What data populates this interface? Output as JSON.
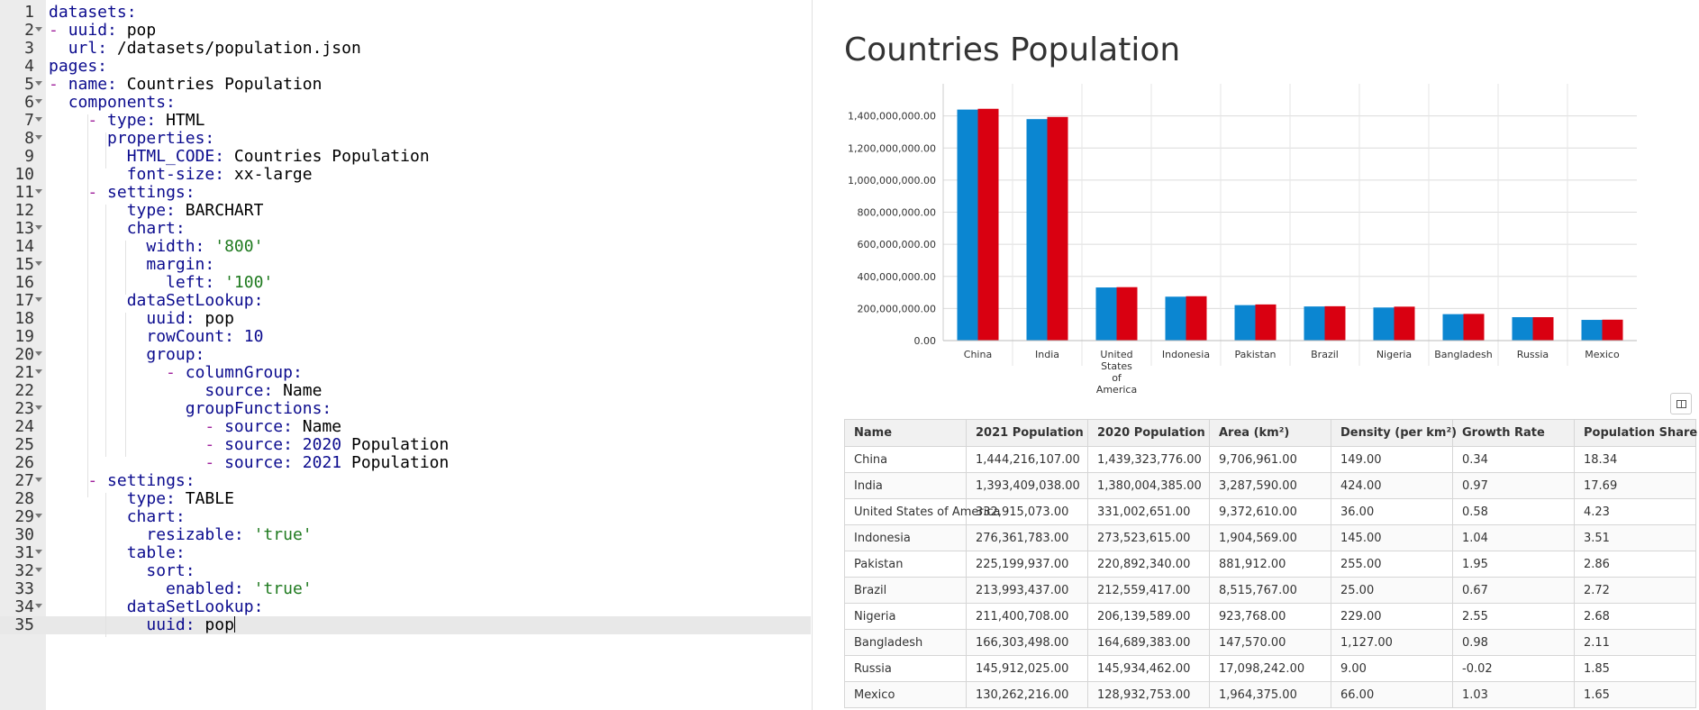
{
  "editor": {
    "lines": [
      {
        "n": "1",
        "fold": false,
        "html": "<span class=\"k\">datasets:</span>"
      },
      {
        "n": "2",
        "fold": true,
        "html": "<span class=\"dash\">-</span> <span class=\"k\">uuid:</span> pop"
      },
      {
        "n": "3",
        "fold": false,
        "html": "  <span class=\"k\">url:</span> /datasets/population.json"
      },
      {
        "n": "4",
        "fold": false,
        "html": "<span class=\"k\">pages:</span>"
      },
      {
        "n": "5",
        "fold": true,
        "html": "<span class=\"dash\">-</span> <span class=\"k\">name:</span> Countries Population"
      },
      {
        "n": "6",
        "fold": true,
        "html": "  <span class=\"k\">components:</span>"
      },
      {
        "n": "7",
        "fold": true,
        "html": "    <span class=\"dash\">-</span> <span class=\"k\">type:</span> HTML"
      },
      {
        "n": "8",
        "fold": true,
        "html": "      <span class=\"k\">properties:</span>"
      },
      {
        "n": "9",
        "fold": false,
        "html": "        <span class=\"k\">HTML_CODE:</span> Countries Population"
      },
      {
        "n": "10",
        "fold": false,
        "html": "        <span class=\"k\">font-size:</span> xx-large"
      },
      {
        "n": "11",
        "fold": true,
        "html": "    <span class=\"dash\">-</span> <span class=\"k\">settings:</span>"
      },
      {
        "n": "12",
        "fold": false,
        "html": "        <span class=\"k\">type:</span> BARCHART"
      },
      {
        "n": "13",
        "fold": true,
        "html": "        <span class=\"k\">chart:</span>"
      },
      {
        "n": "14",
        "fold": false,
        "html": "          <span class=\"k\">width:</span> <span class=\"s\">'800'</span>"
      },
      {
        "n": "15",
        "fold": true,
        "html": "          <span class=\"k\">margin:</span>"
      },
      {
        "n": "16",
        "fold": false,
        "html": "            <span class=\"k\">left:</span> <span class=\"s\">'100'</span>"
      },
      {
        "n": "17",
        "fold": true,
        "html": "        <span class=\"k\">dataSetLookup:</span>"
      },
      {
        "n": "18",
        "fold": false,
        "html": "          <span class=\"k\">uuid:</span> pop"
      },
      {
        "n": "19",
        "fold": false,
        "html": "          <span class=\"k\">rowCount:</span> <span class=\"n\">10</span>"
      },
      {
        "n": "20",
        "fold": true,
        "html": "          <span class=\"k\">group:</span>"
      },
      {
        "n": "21",
        "fold": true,
        "html": "            <span class=\"dash\">-</span> <span class=\"k\">columnGroup:</span>"
      },
      {
        "n": "22",
        "fold": false,
        "html": "                <span class=\"k\">source:</span> Name"
      },
      {
        "n": "23",
        "fold": true,
        "html": "              <span class=\"k\">groupFunctions:</span>"
      },
      {
        "n": "24",
        "fold": false,
        "html": "                <span class=\"dash\">-</span> <span class=\"k\">source:</span> Name"
      },
      {
        "n": "25",
        "fold": false,
        "html": "                <span class=\"dash\">-</span> <span class=\"k\">source:</span> <span class=\"n\">2020</span> Population"
      },
      {
        "n": "26",
        "fold": false,
        "html": "                <span class=\"dash\">-</span> <span class=\"k\">source:</span> <span class=\"n\">2021</span> Population"
      },
      {
        "n": "27",
        "fold": true,
        "html": "    <span class=\"dash\">-</span> <span class=\"k\">settings:</span>"
      },
      {
        "n": "28",
        "fold": false,
        "html": "        <span class=\"k\">type:</span> TABLE"
      },
      {
        "n": "29",
        "fold": true,
        "html": "        <span class=\"k\">chart:</span>"
      },
      {
        "n": "30",
        "fold": false,
        "html": "          <span class=\"k\">resizable:</span> <span class=\"s\">'true'</span>"
      },
      {
        "n": "31",
        "fold": true,
        "html": "        <span class=\"k\">table:</span>"
      },
      {
        "n": "32",
        "fold": true,
        "html": "          <span class=\"k\">sort:</span>"
      },
      {
        "n": "33",
        "fold": false,
        "html": "            <span class=\"k\">enabled:</span> <span class=\"s\">'true'</span>"
      },
      {
        "n": "34",
        "fold": true,
        "html": "        <span class=\"k\">dataSetLookup:</span>"
      },
      {
        "n": "35",
        "fold": false,
        "html": "          <span class=\"k\">uuid:</span> pop<span class=\"cursor\"></span>"
      }
    ]
  },
  "page": {
    "title": "Countries Population"
  },
  "chart_data": {
    "type": "bar",
    "title": "",
    "xlabel": "",
    "ylabel": "",
    "categories": [
      "China",
      "India",
      "United States of America",
      "Indonesia",
      "Pakistan",
      "Brazil",
      "Nigeria",
      "Bangladesh",
      "Russia",
      "Mexico"
    ],
    "series": [
      {
        "values": [
          1439323776,
          1380004385,
          331002651,
          273523615,
          220892340,
          212559417,
          206139589,
          164689383,
          145934462,
          128932753
        ],
        "color": "#0b86d1"
      },
      {
        "values": [
          1444216107,
          1393409038,
          332915073,
          276361783,
          225199937,
          213993437,
          211400708,
          166303498,
          145912025,
          130262216
        ],
        "color": "#d90011"
      }
    ],
    "ylim": [
      0,
      1600000000
    ],
    "yticks": [
      "0.00",
      "200,000,000.00",
      "400,000,000.00",
      "600,000,000.00",
      "800,000,000.00",
      "1,000,000,000.00",
      "1,200,000,000.00",
      "1,400,000,000.00"
    ],
    "grid": true,
    "legend": "none"
  },
  "table": {
    "headers": [
      "Name",
      "2021 Population",
      "2020 Population",
      "Area (km²)",
      "Density (per km²)",
      "Growth Rate",
      "Population Share"
    ],
    "rows": [
      [
        "China",
        "1,444,216,107.00",
        "1,439,323,776.00",
        "9,706,961.00",
        "149.00",
        "0.34",
        "18.34"
      ],
      [
        "India",
        "1,393,409,038.00",
        "1,380,004,385.00",
        "3,287,590.00",
        "424.00",
        "0.97",
        "17.69"
      ],
      [
        "United States of America",
        "332,915,073.00",
        "331,002,651.00",
        "9,372,610.00",
        "36.00",
        "0.58",
        "4.23"
      ],
      [
        "Indonesia",
        "276,361,783.00",
        "273,523,615.00",
        "1,904,569.00",
        "145.00",
        "1.04",
        "3.51"
      ],
      [
        "Pakistan",
        "225,199,937.00",
        "220,892,340.00",
        "881,912.00",
        "255.00",
        "1.95",
        "2.86"
      ],
      [
        "Brazil",
        "213,993,437.00",
        "212,559,417.00",
        "8,515,767.00",
        "25.00",
        "0.67",
        "2.72"
      ],
      [
        "Nigeria",
        "211,400,708.00",
        "206,139,589.00",
        "923,768.00",
        "229.00",
        "2.55",
        "2.68"
      ],
      [
        "Bangladesh",
        "166,303,498.00",
        "164,689,383.00",
        "147,570.00",
        "1,127.00",
        "0.98",
        "2.11"
      ],
      [
        "Russia",
        "145,912,025.00",
        "145,934,462.00",
        "17,098,242.00",
        "9.00",
        "-0.02",
        "1.85"
      ],
      [
        "Mexico",
        "130,262,216.00",
        "128,932,753.00",
        "1,964,375.00",
        "66.00",
        "1.03",
        "1.65"
      ]
    ]
  }
}
